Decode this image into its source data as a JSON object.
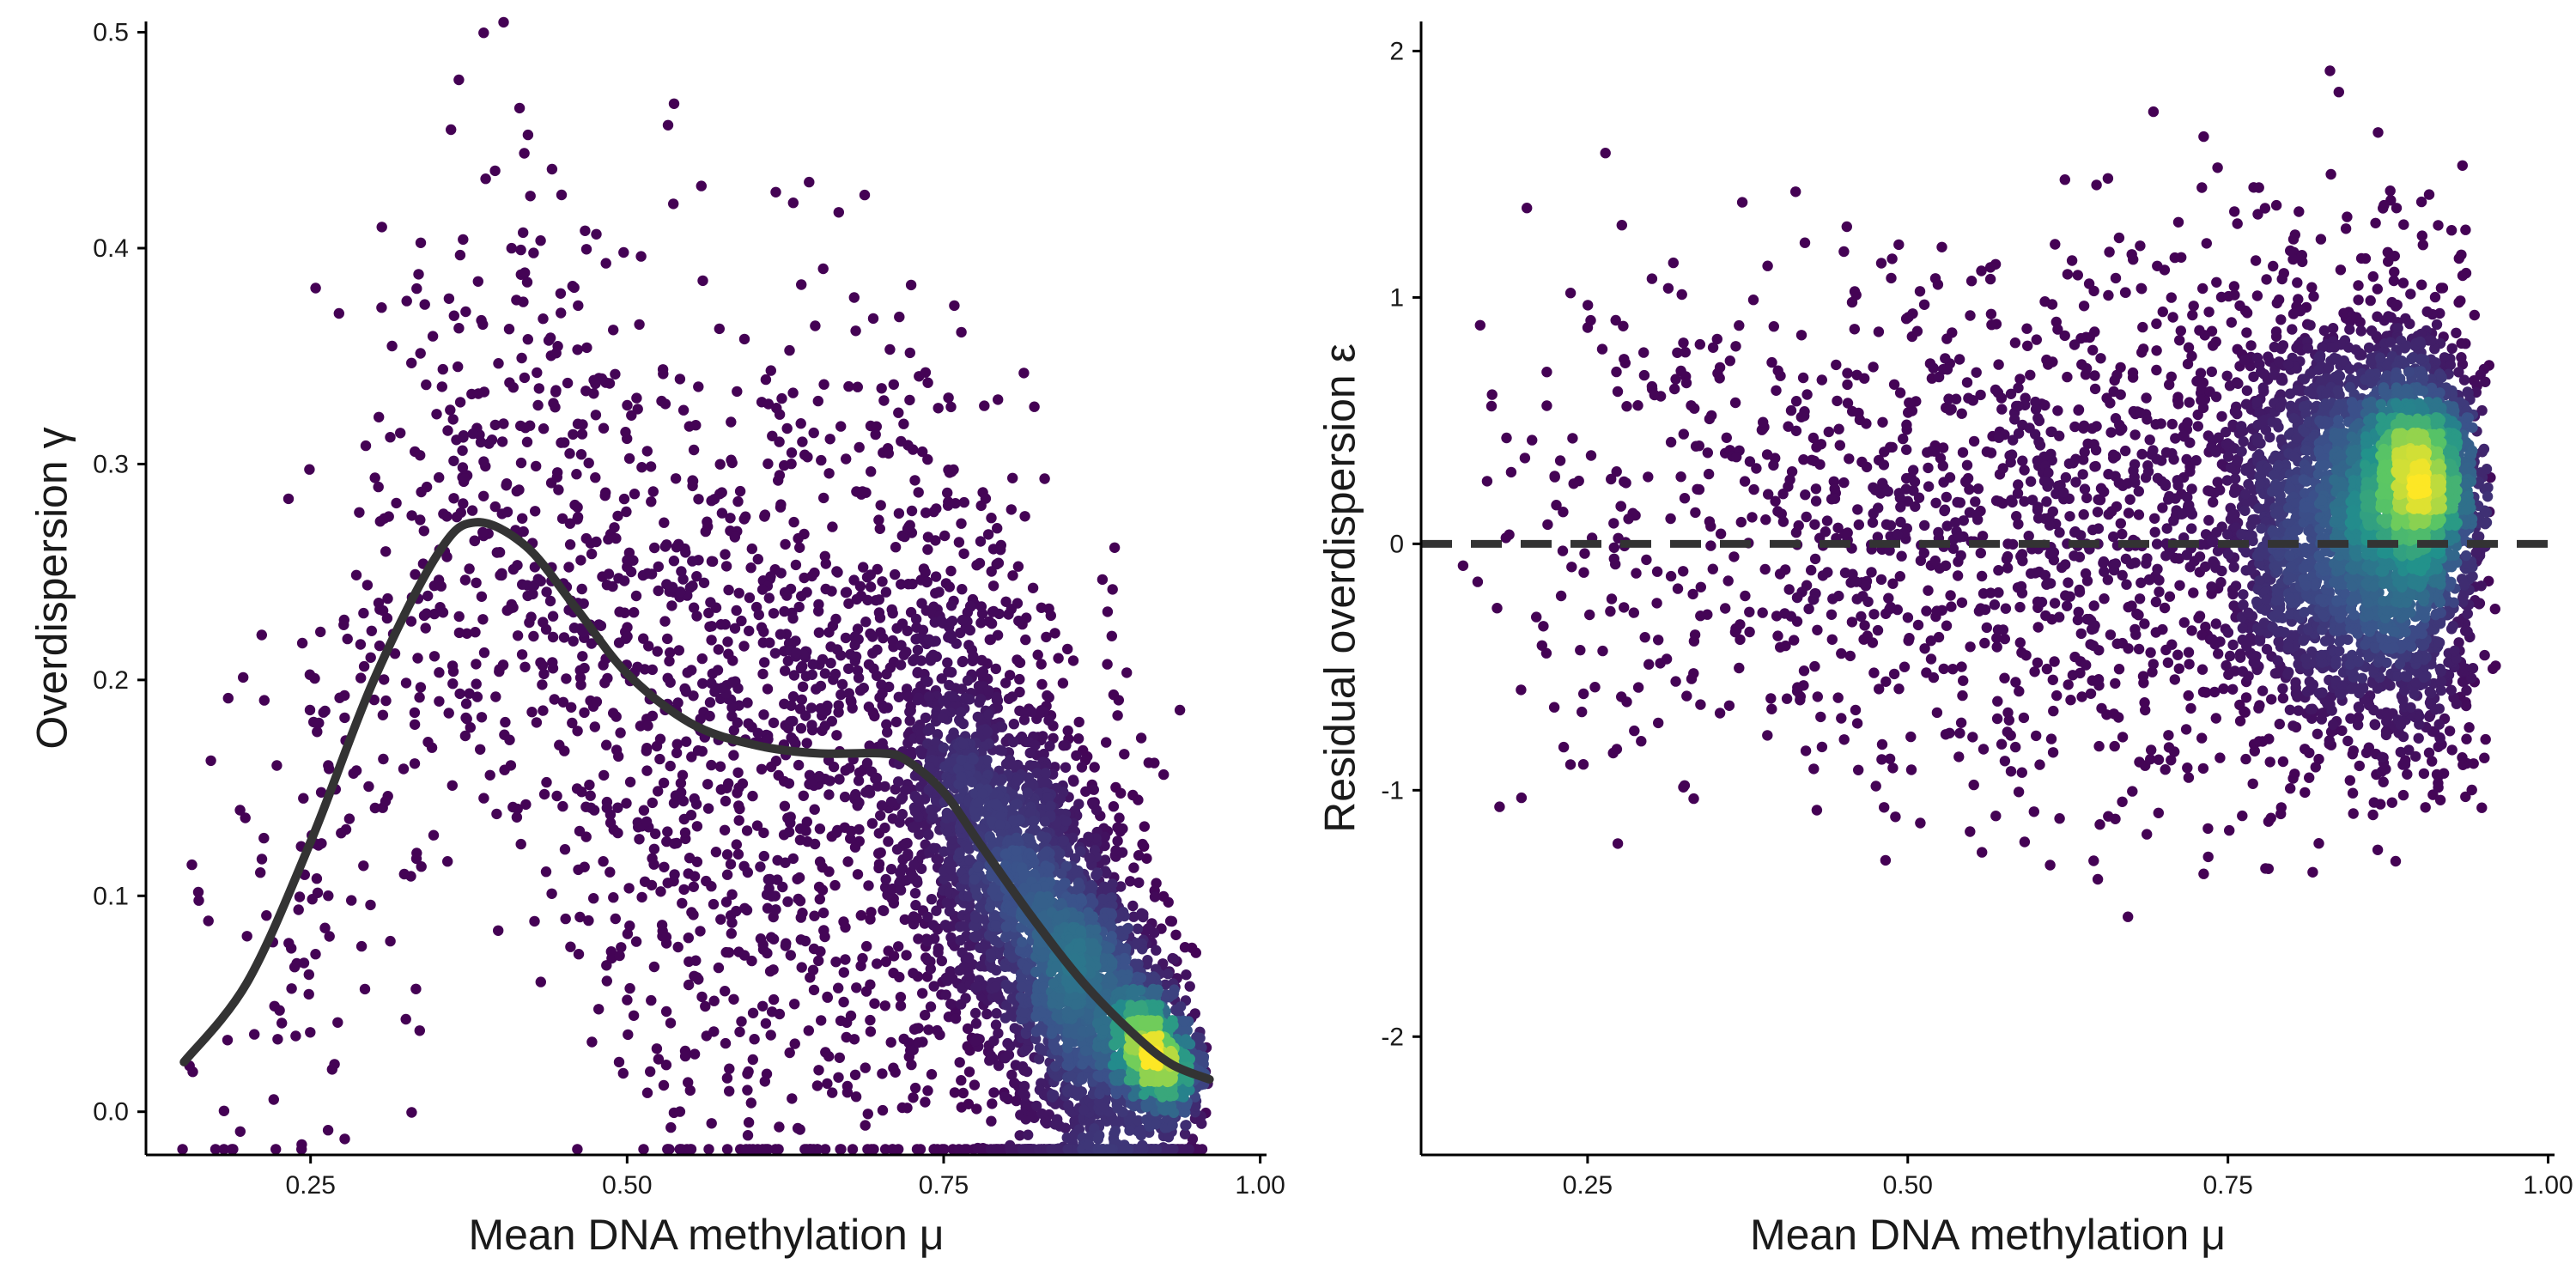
{
  "colors": {
    "background": "#ffffff",
    "axis": "#000000",
    "line": "#333333",
    "density_scale": [
      "#440154",
      "#3b528b",
      "#21918c",
      "#5ec962",
      "#fde725"
    ]
  },
  "chart_data": [
    {
      "type": "scatter",
      "xlabel": "Mean DNA methylation μ",
      "ylabel": "Overdispersion γ",
      "xlim": [
        0.12,
        1.005
      ],
      "ylim": [
        -0.02,
        0.505
      ],
      "x_ticks": [
        0.25,
        0.5,
        0.75,
        1.0
      ],
      "x_tick_labels": [
        "0.25",
        "0.50",
        "0.75",
        "1.00"
      ],
      "y_ticks": [
        0.0,
        0.1,
        0.2,
        0.3,
        0.4,
        0.5
      ],
      "y_tick_labels": [
        "0.0",
        "0.1",
        "0.2",
        "0.3",
        "0.4",
        "0.5"
      ],
      "grid": false,
      "point_color": "density (viridis)",
      "trend_line": {
        "x": [
          0.15,
          0.2,
          0.25,
          0.3,
          0.35,
          0.38,
          0.42,
          0.46,
          0.5,
          0.55,
          0.6,
          0.65,
          0.7,
          0.72,
          0.75,
          0.78,
          0.82,
          0.86,
          0.9,
          0.93,
          0.96
        ],
        "y": [
          0.023,
          0.06,
          0.125,
          0.2,
          0.258,
          0.273,
          0.262,
          0.233,
          0.203,
          0.18,
          0.17,
          0.166,
          0.166,
          0.163,
          0.148,
          0.123,
          0.09,
          0.06,
          0.036,
          0.022,
          0.015
        ]
      },
      "point_clouds": [
        {
          "n": 2600,
          "x_range": [
            0.14,
            0.96
          ],
          "x_mode": 0.84,
          "y_center": "trend",
          "y_spread": 0.075,
          "density": "low"
        },
        {
          "n": 2200,
          "x_range": [
            0.7,
            0.95
          ],
          "x_mode": 0.86,
          "y_center": "trend",
          "y_spread": 0.035,
          "density": "high"
        },
        {
          "n": 700,
          "x_range": [
            0.88,
            0.96
          ],
          "x_mode": 0.92,
          "y_center": "trend",
          "y_spread": 0.012,
          "density": "peak"
        }
      ]
    },
    {
      "type": "scatter",
      "xlabel": "Mean DNA methylation μ",
      "ylabel": "Residual overdispersion ε",
      "xlim": [
        0.12,
        1.005
      ],
      "ylim": [
        -2.48,
        2.12
      ],
      "x_ticks": [
        0.25,
        0.5,
        0.75,
        1.0
      ],
      "x_tick_labels": [
        "0.25",
        "0.50",
        "0.75",
        "1.00"
      ],
      "y_ticks": [
        -2,
        -1,
        0,
        1,
        2
      ],
      "y_tick_labels": [
        "-2",
        "-1",
        "0",
        "1",
        "2"
      ],
      "grid": false,
      "point_color": "density (viridis)",
      "reference_line": {
        "y": 0,
        "style": "dashed"
      },
      "point_clouds": [
        {
          "n": 1900,
          "x_range": [
            0.14,
            0.96
          ],
          "x_mode": 0.85,
          "y_center": 0.1,
          "y_spread": 0.55,
          "density": "low"
        },
        {
          "n": 2400,
          "x_range": [
            0.74,
            0.96
          ],
          "x_mode": 0.89,
          "y_center": 0.05,
          "y_spread": 0.42,
          "density": "high"
        },
        {
          "n": 800,
          "x_range": [
            0.86,
            0.95
          ],
          "x_mode": 0.9,
          "y_center": 0.28,
          "y_spread": 0.2,
          "density": "peak"
        }
      ]
    }
  ]
}
